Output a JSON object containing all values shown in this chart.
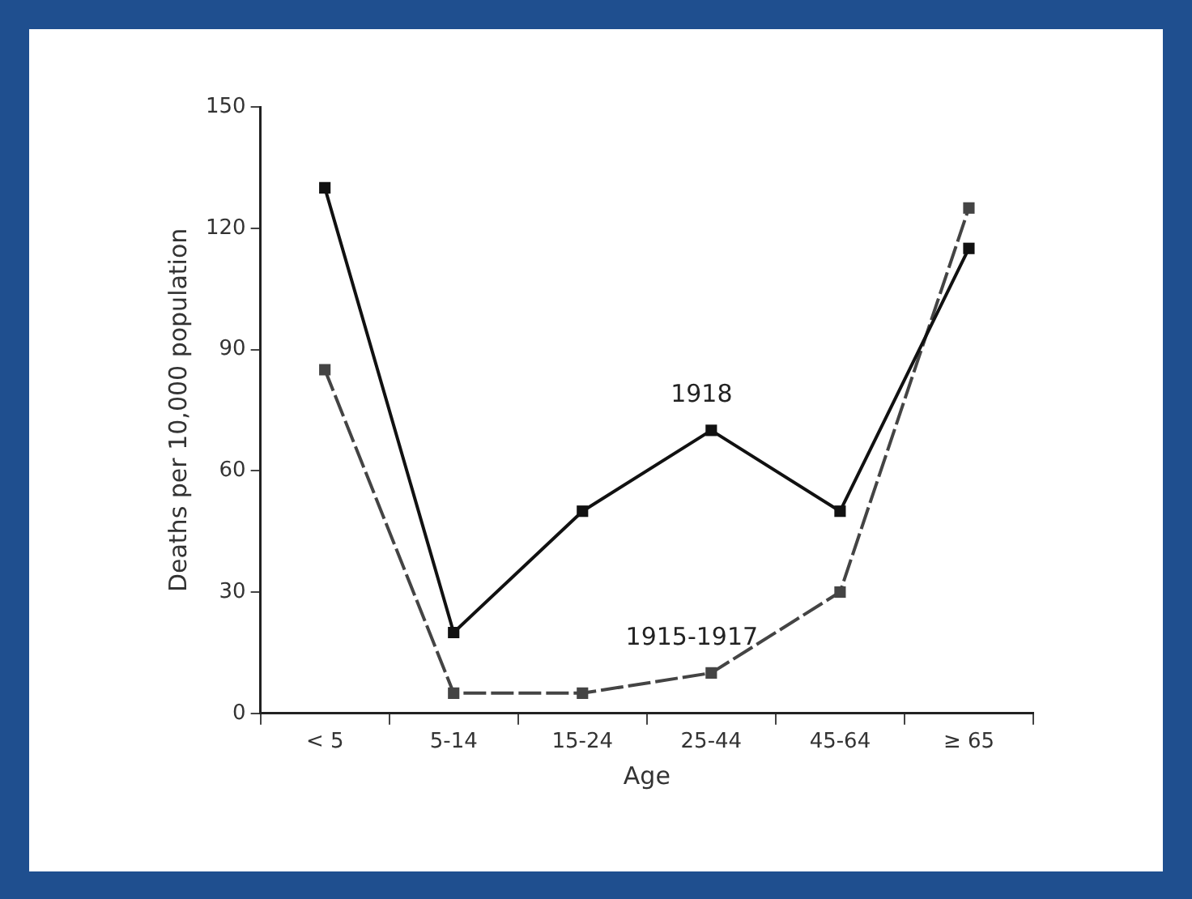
{
  "chart_data": {
    "type": "line",
    "xlabel": "Age",
    "ylabel": "Deaths per 10,000 population",
    "categories": [
      "< 5",
      "5-14",
      "15-24",
      "25-44",
      "45-64",
      "≥ 65"
    ],
    "series": [
      {
        "name": "1918",
        "color": "#111111",
        "values": [
          130,
          20,
          50,
          70,
          50,
          115
        ],
        "line_style": "solid"
      },
      {
        "name": "1915-1917",
        "color": "#444444",
        "values": [
          85,
          5,
          5,
          10,
          30,
          125
        ],
        "line_style": "dashed"
      }
    ],
    "ylim": [
      0,
      150
    ],
    "yticks": [
      0,
      30,
      60,
      90,
      120,
      150
    ],
    "grid": false,
    "legend": false,
    "marker": "square"
  }
}
